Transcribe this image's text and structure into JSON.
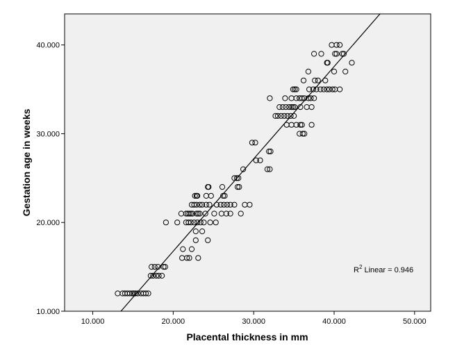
{
  "chart_data": {
    "type": "scatter",
    "title": "",
    "xlabel": "Placental thickness in mm",
    "ylabel": "Gestation age in weeks",
    "xlim": [
      6.5,
      52
    ],
    "ylim": [
      10,
      43.5
    ],
    "xticks": [
      10,
      20,
      30,
      40,
      50
    ],
    "yticks": [
      10,
      20,
      30,
      40
    ],
    "xtick_labels": [
      "10.000",
      "20.000",
      "30.000",
      "40.000",
      "50.000"
    ],
    "ytick_labels": [
      "10.000",
      "20.000",
      "30.000",
      "40.000"
    ],
    "grid": false,
    "colors": {
      "plot_background": "#f0f0f0",
      "marker_edge": "#000000",
      "fit_line": "#000000"
    },
    "annotation": {
      "prefix": "R",
      "superscript": "2",
      "text": " Linear = 0.946"
    },
    "fit_line": {
      "x": [
        13.5,
        45.7
      ],
      "y": [
        10,
        43.5
      ]
    },
    "points": [
      [
        13.1,
        12
      ],
      [
        13.7,
        12
      ],
      [
        14.0,
        12
      ],
      [
        14.3,
        12
      ],
      [
        14.6,
        12
      ],
      [
        14.9,
        12
      ],
      [
        15.1,
        12
      ],
      [
        15.3,
        12
      ],
      [
        15.6,
        12
      ],
      [
        16.0,
        12
      ],
      [
        16.3,
        12
      ],
      [
        16.6,
        12
      ],
      [
        16.9,
        12
      ],
      [
        17.2,
        14
      ],
      [
        17.5,
        14
      ],
      [
        17.9,
        14
      ],
      [
        18.2,
        14
      ],
      [
        18.6,
        14
      ],
      [
        17.3,
        15
      ],
      [
        17.7,
        15
      ],
      [
        18.1,
        15
      ],
      [
        18.8,
        15
      ],
      [
        19.0,
        15
      ],
      [
        19.1,
        20
      ],
      [
        20.5,
        20
      ],
      [
        21.1,
        16
      ],
      [
        21.7,
        16
      ],
      [
        22.0,
        16
      ],
      [
        21.2,
        17
      ],
      [
        22.3,
        17
      ],
      [
        23.1,
        16
      ],
      [
        21.0,
        21
      ],
      [
        21.6,
        20
      ],
      [
        21.9,
        20
      ],
      [
        22.2,
        20
      ],
      [
        22.6,
        20
      ],
      [
        23.0,
        20
      ],
      [
        23.4,
        20
      ],
      [
        23.8,
        20
      ],
      [
        24.6,
        20
      ],
      [
        25.3,
        20
      ],
      [
        21.6,
        21
      ],
      [
        21.8,
        21
      ],
      [
        22.0,
        21
      ],
      [
        22.2,
        21
      ],
      [
        22.4,
        21
      ],
      [
        22.9,
        21
      ],
      [
        23.1,
        21
      ],
      [
        23.3,
        21
      ],
      [
        24.0,
        21
      ],
      [
        25.1,
        21
      ],
      [
        26.0,
        21
      ],
      [
        26.6,
        21
      ],
      [
        27.1,
        21
      ],
      [
        28.4,
        21
      ],
      [
        22.3,
        22
      ],
      [
        22.6,
        22
      ],
      [
        22.9,
        22
      ],
      [
        23.3,
        22
      ],
      [
        23.6,
        22
      ],
      [
        24.1,
        22
      ],
      [
        24.5,
        22
      ],
      [
        25.4,
        22
      ],
      [
        25.9,
        22
      ],
      [
        26.3,
        22
      ],
      [
        26.7,
        22
      ],
      [
        27.1,
        22
      ],
      [
        27.6,
        22
      ],
      [
        28.9,
        22
      ],
      [
        29.5,
        22
      ],
      [
        22.7,
        23
      ],
      [
        22.9,
        23
      ],
      [
        23.0,
        23
      ],
      [
        24.1,
        23
      ],
      [
        24.7,
        23
      ],
      [
        26.2,
        23
      ],
      [
        26.4,
        23
      ],
      [
        24.3,
        24
      ],
      [
        24.4,
        24
      ],
      [
        26.1,
        24
      ],
      [
        28.0,
        24
      ],
      [
        28.2,
        24
      ],
      [
        22.8,
        19
      ],
      [
        23.6,
        19
      ],
      [
        22.8,
        18
      ],
      [
        24.3,
        18
      ],
      [
        27.6,
        25
      ],
      [
        27.9,
        25
      ],
      [
        28.1,
        25
      ],
      [
        28.7,
        26
      ],
      [
        30.3,
        27
      ],
      [
        30.8,
        27
      ],
      [
        31.7,
        26
      ],
      [
        32.0,
        26
      ],
      [
        31.9,
        28
      ],
      [
        32.1,
        28
      ],
      [
        29.8,
        29
      ],
      [
        30.2,
        29
      ],
      [
        32.0,
        34
      ],
      [
        32.7,
        32
      ],
      [
        33.0,
        32
      ],
      [
        33.4,
        32
      ],
      [
        33.8,
        32
      ],
      [
        34.2,
        32
      ],
      [
        34.6,
        32
      ],
      [
        35.0,
        32
      ],
      [
        33.2,
        33
      ],
      [
        33.6,
        33
      ],
      [
        34.0,
        33
      ],
      [
        34.4,
        33
      ],
      [
        34.7,
        33
      ],
      [
        34.9,
        33
      ],
      [
        35.1,
        33
      ],
      [
        35.8,
        33
      ],
      [
        36.6,
        33
      ],
      [
        37.2,
        33
      ],
      [
        34.1,
        31
      ],
      [
        34.7,
        31
      ],
      [
        35.3,
        31
      ],
      [
        35.8,
        31
      ],
      [
        36.0,
        31
      ],
      [
        37.2,
        31
      ],
      [
        35.7,
        30
      ],
      [
        36.1,
        30
      ],
      [
        36.3,
        30
      ],
      [
        34.9,
        35
      ],
      [
        35.1,
        35
      ],
      [
        35.3,
        34
      ],
      [
        35.7,
        34
      ],
      [
        36.0,
        34
      ],
      [
        36.3,
        34
      ],
      [
        36.8,
        34
      ],
      [
        37.1,
        34
      ],
      [
        37.5,
        34
      ],
      [
        33.9,
        34
      ],
      [
        34.7,
        34
      ],
      [
        35.3,
        35
      ],
      [
        36.9,
        35
      ],
      [
        37.4,
        35
      ],
      [
        37.8,
        35
      ],
      [
        38.3,
        35
      ],
      [
        38.7,
        35
      ],
      [
        39.1,
        35
      ],
      [
        39.4,
        35
      ],
      [
        39.8,
        35
      ],
      [
        40.1,
        35
      ],
      [
        40.7,
        35
      ],
      [
        36.2,
        36
      ],
      [
        37.6,
        36
      ],
      [
        38.0,
        36
      ],
      [
        38.9,
        36
      ],
      [
        36.8,
        37
      ],
      [
        40.0,
        37
      ],
      [
        41.4,
        37
      ],
      [
        39.1,
        38
      ],
      [
        39.2,
        38
      ],
      [
        42.2,
        38
      ],
      [
        37.5,
        39
      ],
      [
        38.4,
        39
      ],
      [
        40.1,
        39
      ],
      [
        40.3,
        39
      ],
      [
        41.0,
        39
      ],
      [
        41.2,
        39
      ],
      [
        39.7,
        40
      ],
      [
        40.3,
        40
      ],
      [
        40.7,
        40
      ]
    ]
  }
}
